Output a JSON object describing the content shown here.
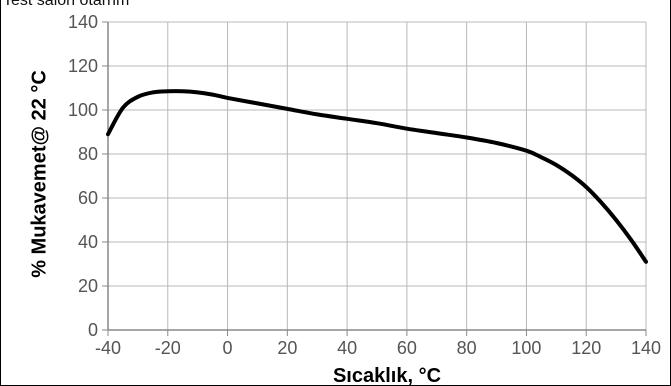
{
  "header": {
    "text": "Test sàlón ótàrnm"
  },
  "chart_data": {
    "type": "line",
    "title": "",
    "xlabel": "Sıcaklık, °C",
    "ylabel": "% Mukavemet@ 22 °C",
    "xlim": [
      -40,
      140
    ],
    "ylim": [
      0,
      140
    ],
    "x_ticks": [
      "-40",
      "-20",
      "0",
      "20",
      "40",
      "60",
      "80",
      "100",
      "120",
      "140"
    ],
    "y_ticks": [
      "0",
      "20",
      "40",
      "60",
      "80",
      "100",
      "120",
      "140"
    ],
    "grid": true,
    "line_color": "#000000",
    "series": [
      {
        "x": [
          -40,
          -35,
          -30,
          -25,
          -20,
          -15,
          -10,
          -5,
          0,
          10,
          20,
          30,
          40,
          50,
          60,
          70,
          80,
          90,
          100,
          105,
          110,
          115,
          120,
          125,
          130,
          135,
          140
        ],
        "values": [
          89,
          101,
          106,
          108,
          108.5,
          108.5,
          108,
          107,
          105.5,
          103,
          100.5,
          98,
          96,
          94,
          91.5,
          89.5,
          87.5,
          85,
          81.5,
          78.5,
          75,
          70.5,
          65,
          58,
          50,
          41,
          31
        ]
      }
    ]
  }
}
